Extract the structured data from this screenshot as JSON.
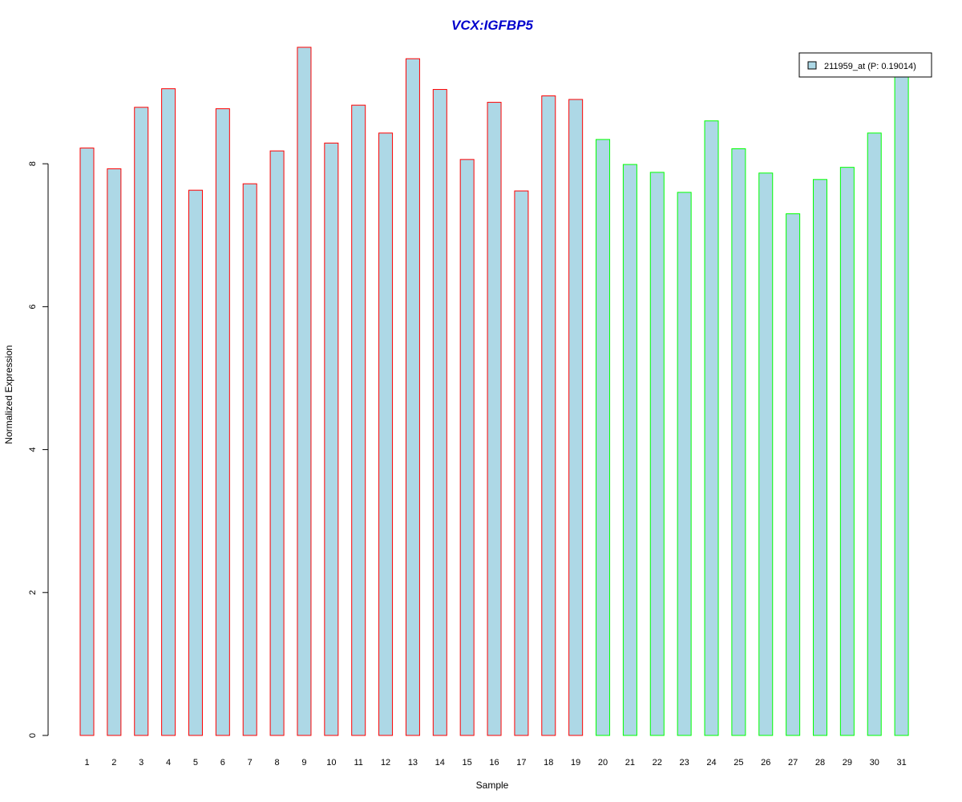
{
  "chart_data": {
    "type": "bar",
    "title": "VCX:IGFBP5",
    "xlabel": "Sample",
    "ylabel": "Normalized Expression",
    "ylim": [
      0,
      10
    ],
    "yticks": [
      0,
      2,
      4,
      6,
      8
    ],
    "categories": [
      "1",
      "2",
      "3",
      "4",
      "5",
      "6",
      "7",
      "8",
      "9",
      "10",
      "11",
      "12",
      "13",
      "14",
      "15",
      "16",
      "17",
      "18",
      "19",
      "20",
      "21",
      "22",
      "23",
      "24",
      "25",
      "26",
      "27",
      "28",
      "29",
      "30",
      "31"
    ],
    "series": [
      {
        "name": "211959_at (P: 0.19014)",
        "values": [
          8.22,
          7.93,
          8.79,
          9.05,
          7.63,
          8.77,
          7.72,
          8.18,
          9.63,
          8.29,
          8.82,
          8.43,
          9.47,
          9.04,
          8.06,
          8.86,
          7.62,
          8.95,
          8.9,
          8.34,
          7.99,
          7.88,
          7.6,
          8.6,
          8.21,
          7.87,
          7.3,
          7.78,
          7.95,
          8.43,
          9.25
        ]
      }
    ],
    "group_of_sample": [
      1,
      1,
      1,
      1,
      1,
      1,
      1,
      1,
      1,
      1,
      1,
      1,
      1,
      1,
      1,
      1,
      1,
      1,
      1,
      2,
      2,
      2,
      2,
      2,
      2,
      2,
      2,
      2,
      2,
      2,
      2
    ],
    "colors": {
      "bar_fill": "#add8e6",
      "group1_border": "#ff0000",
      "group2_border": "#00ff00",
      "title": "#0000cc"
    },
    "legend": {
      "label": "211959_at (P: 0.19014)",
      "placement": "top-right"
    },
    "grid": false
  }
}
